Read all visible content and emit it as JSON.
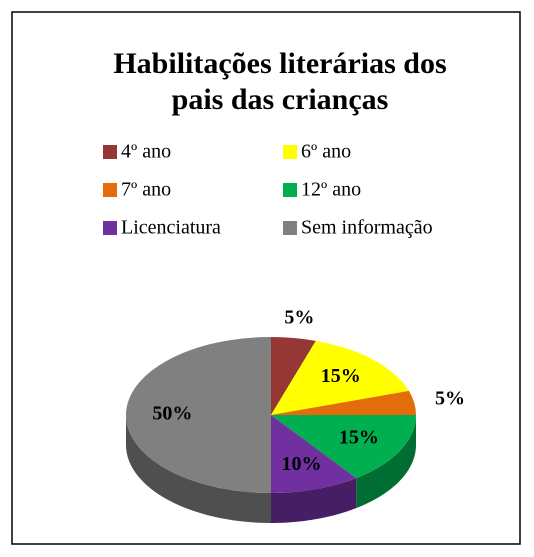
{
  "chart_data": {
    "type": "pie",
    "title": "Habilitações literárias dos pais das crianças",
    "categories": [
      "4º ano",
      "6º ano",
      "7º ano",
      "12º ano",
      "Licenciatura",
      "Sem informação"
    ],
    "values": [
      5,
      15,
      5,
      15,
      10,
      50
    ],
    "value_labels": [
      "5%",
      "15%",
      "5%",
      "15%",
      "10%",
      "50%"
    ],
    "colors": [
      "#953735",
      "#ffff00",
      "#e46c0a",
      "#00b050",
      "#7030a0",
      "#808080"
    ],
    "legend": "top"
  }
}
